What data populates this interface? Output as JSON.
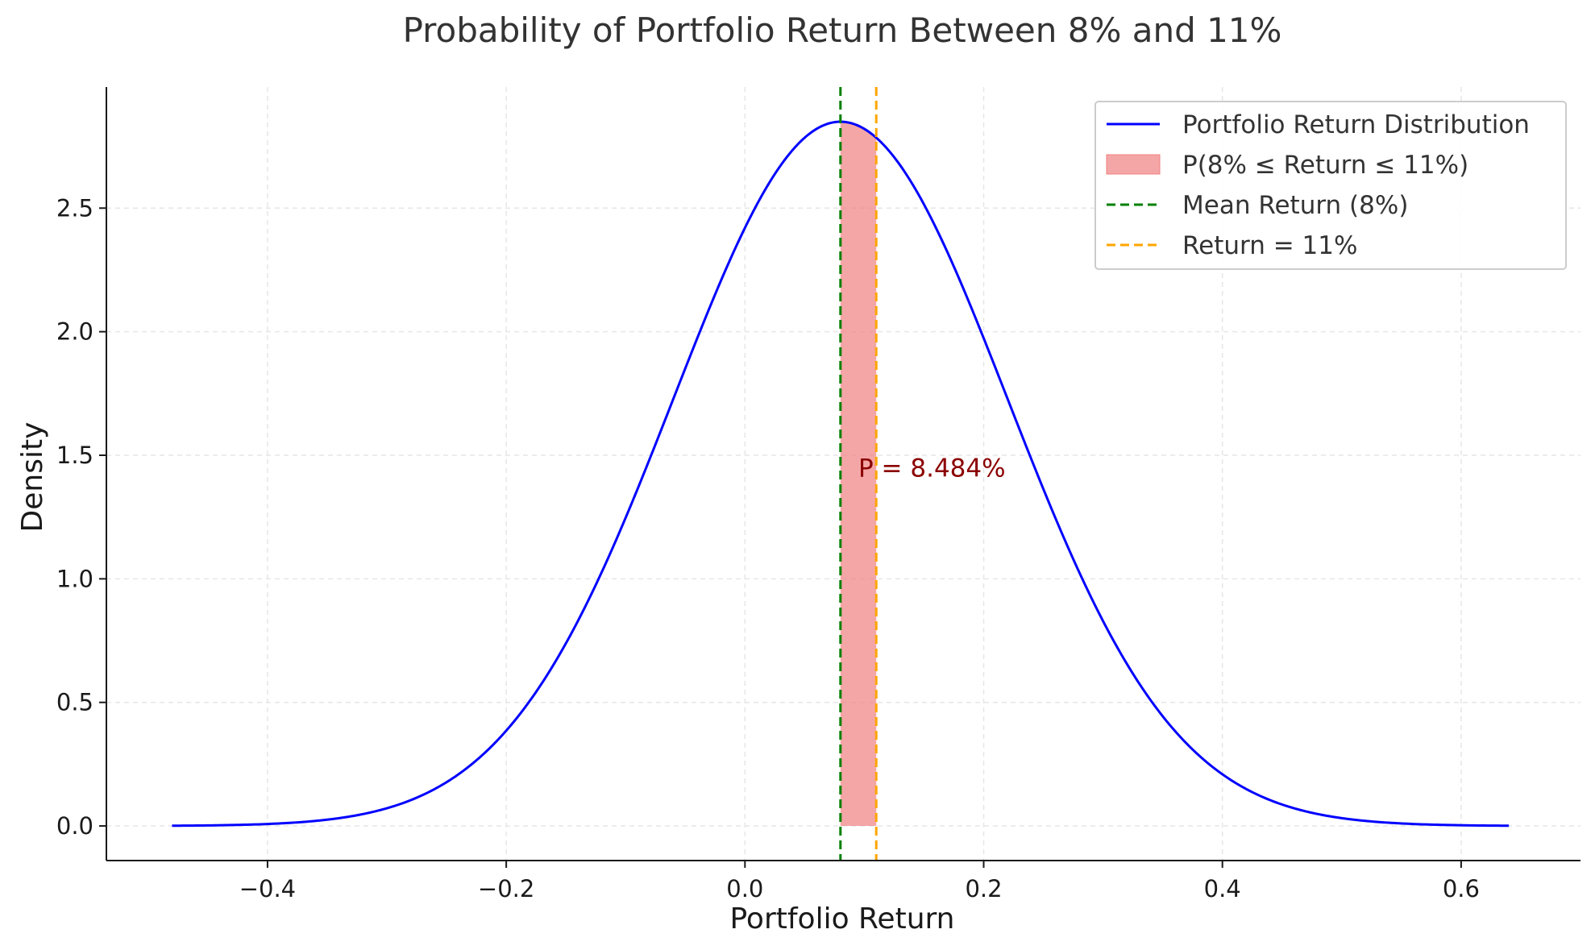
{
  "chart_data": {
    "type": "line",
    "title": "Probability of Portfolio Return Between 8% and 11%",
    "xlabel": "Portfolio Return",
    "ylabel": "Density",
    "xlim": [
      -0.535,
      0.7
    ],
    "ylim": [
      -0.14,
      2.99
    ],
    "x_ticks": [
      {
        "value": -0.4,
        "label": "−0.4"
      },
      {
        "value": -0.2,
        "label": "−0.2"
      },
      {
        "value": 0.0,
        "label": "0.0"
      },
      {
        "value": 0.2,
        "label": "0.2"
      },
      {
        "value": 0.4,
        "label": "0.4"
      },
      {
        "value": 0.6,
        "label": "0.6"
      }
    ],
    "y_ticks": [
      {
        "value": 0.0,
        "label": "0.0"
      },
      {
        "value": 0.5,
        "label": "0.5"
      },
      {
        "value": 1.0,
        "label": "1.0"
      },
      {
        "value": 1.5,
        "label": "1.5"
      },
      {
        "value": 2.0,
        "label": "2.0"
      },
      {
        "value": 2.5,
        "label": "2.5"
      }
    ],
    "grid": true,
    "legend_position": "top-right",
    "distribution": {
      "kind": "normal",
      "mean": 0.08,
      "std": 0.14,
      "x_range": [
        -0.48,
        0.64
      ],
      "color": "#0000ff"
    },
    "shaded_region": {
      "x_range": [
        0.08,
        0.11
      ],
      "color": "#f08080"
    },
    "vertical_lines": [
      {
        "x": 0.08,
        "color": "#008000",
        "style": "dashed"
      },
      {
        "x": 0.11,
        "color": "#ffa500",
        "style": "dashed"
      }
    ],
    "annotation": {
      "text": "P = 8.484%",
      "x": 0.095,
      "y": 1.45,
      "color": "#8b0000"
    },
    "legend": [
      {
        "label": "Portfolio Return Distribution",
        "kind": "line",
        "color": "#0000ff"
      },
      {
        "label": "P(8% ≤ Return ≤ 11%)",
        "kind": "patch",
        "color": "#f08080"
      },
      {
        "label": "Mean Return (8%)",
        "kind": "dashed",
        "color": "#008000"
      },
      {
        "label": "Return = 11%",
        "kind": "dashed",
        "color": "#ffa500"
      }
    ]
  }
}
